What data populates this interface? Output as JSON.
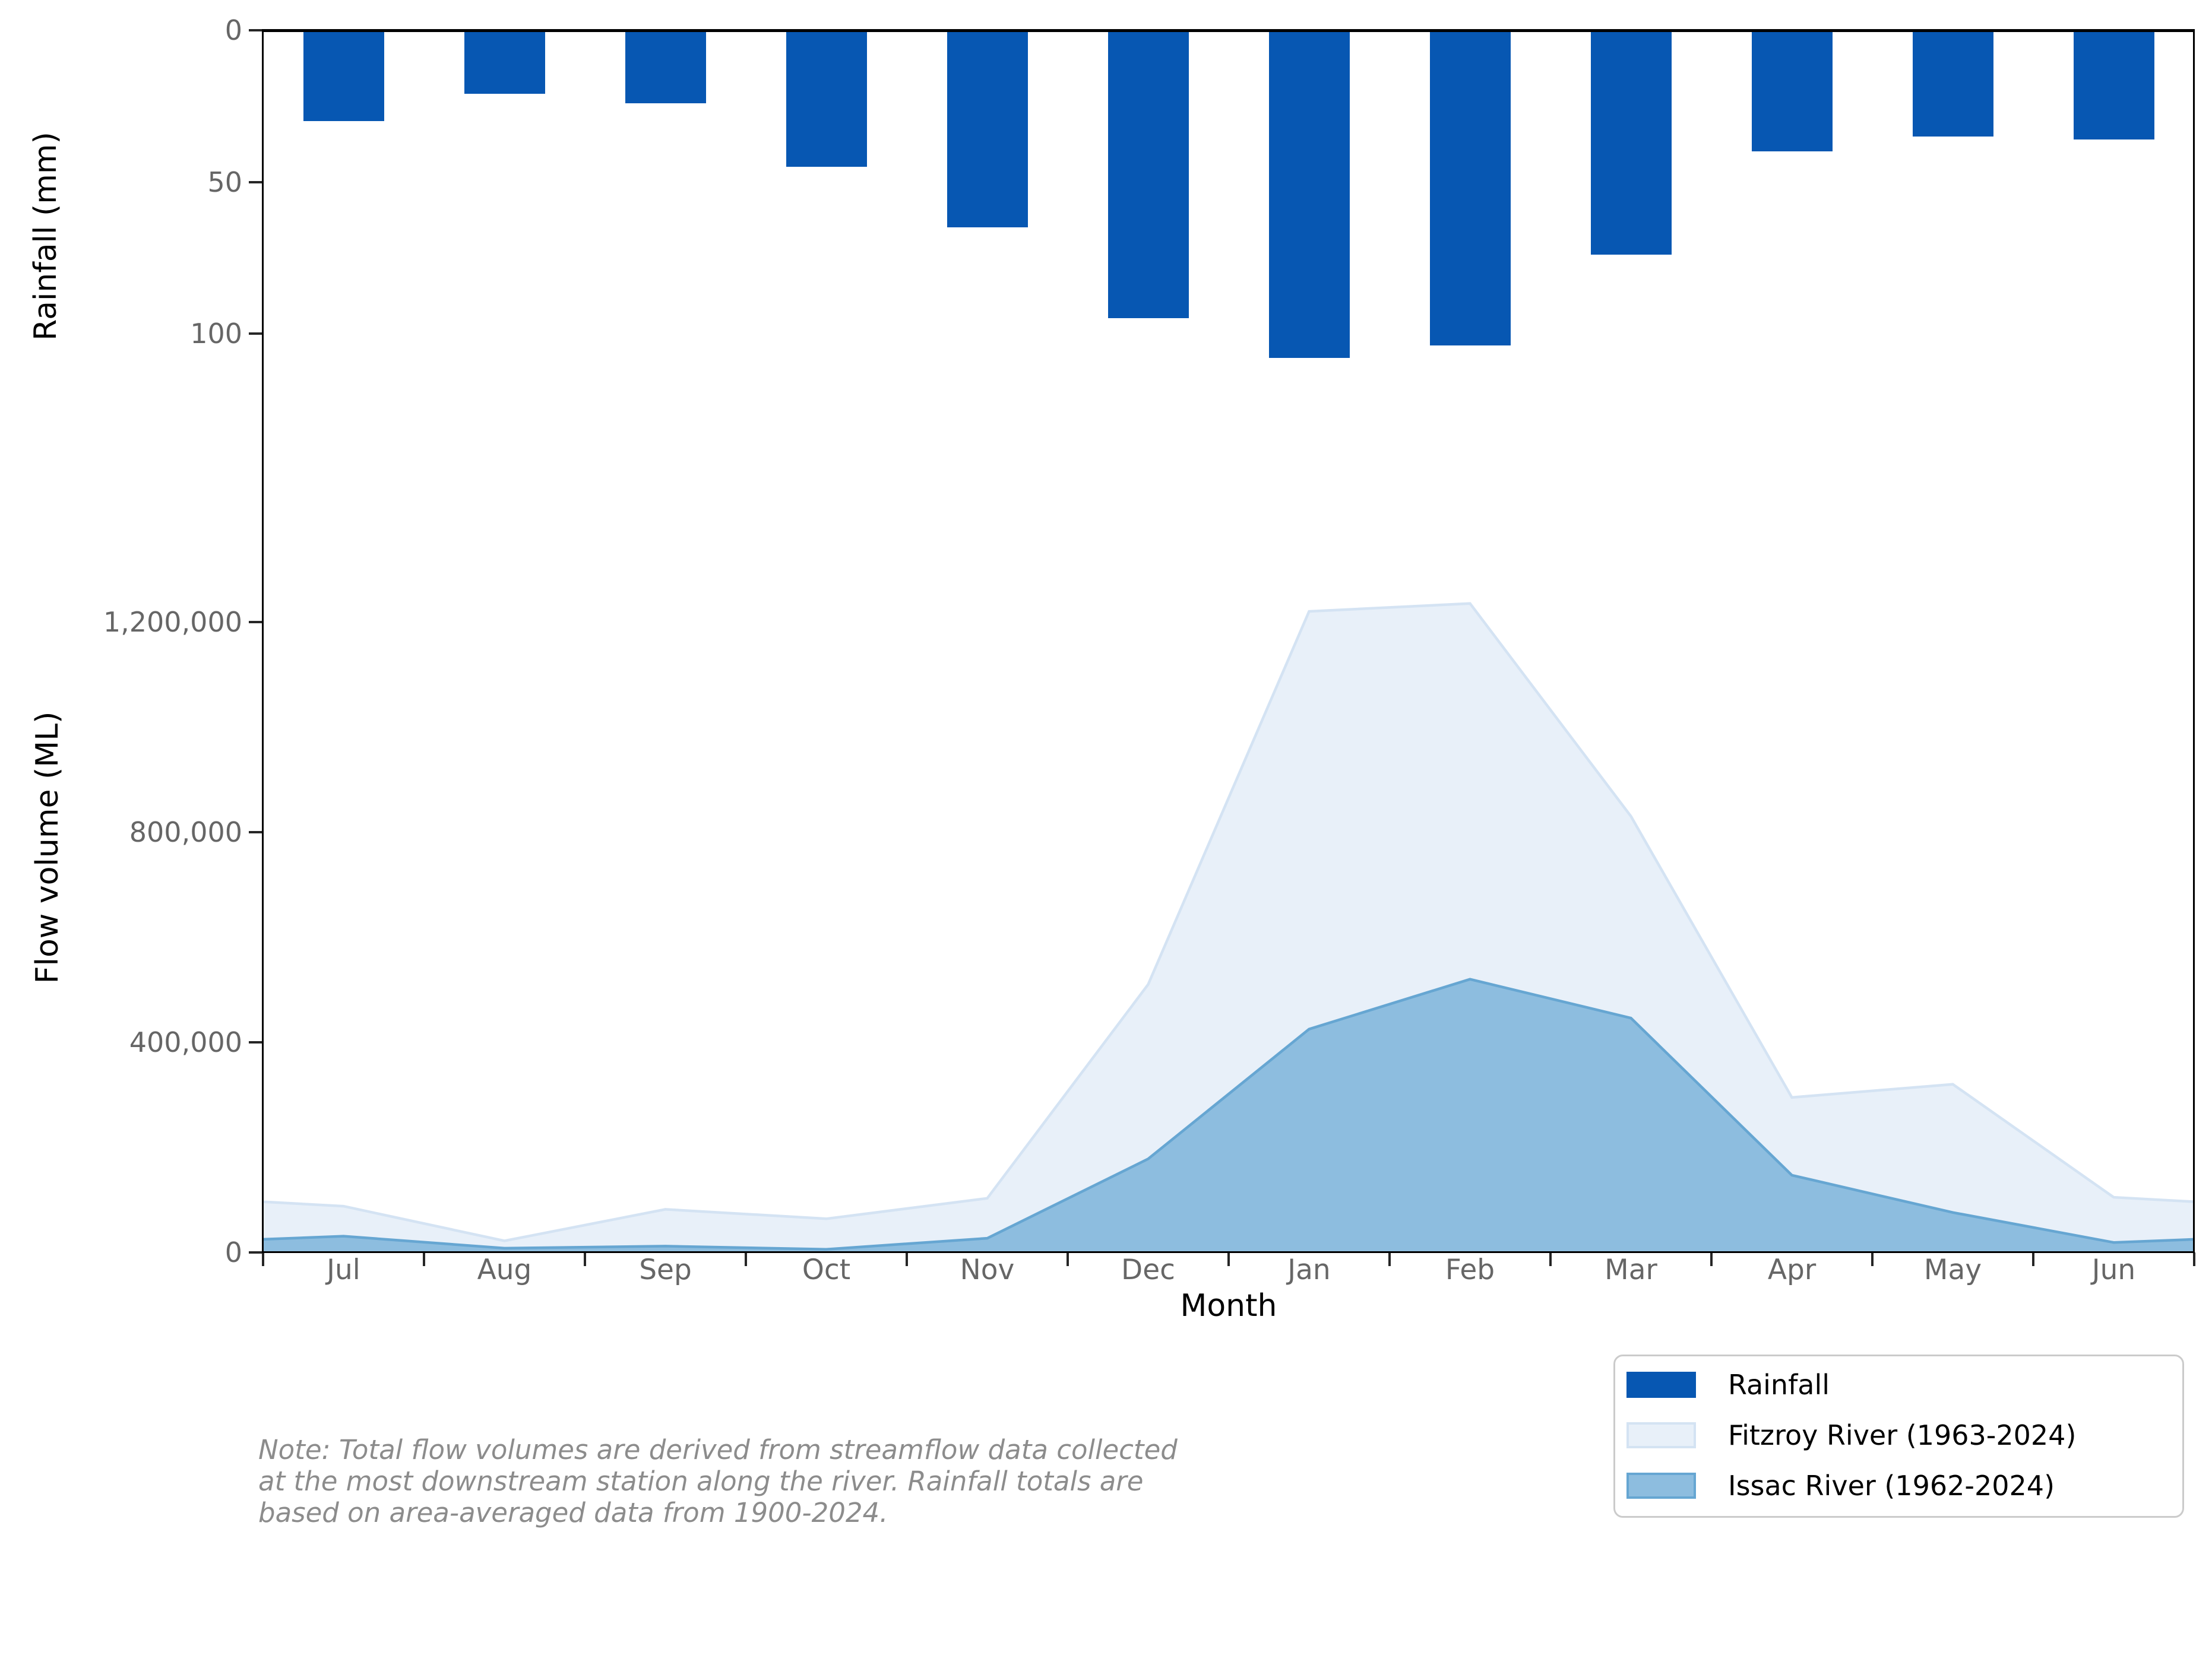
{
  "note": {
    "lines": [
      "Note: Total flow volumes are derived from streamflow data collected",
      "at the most downstream station along the river. Rainfall totals are",
      "based on area-averaged data from 1900-2024."
    ]
  },
  "legend": {
    "items": [
      {
        "label": "Rainfall",
        "fill": "#0757b2",
        "edge": "#0757b2"
      },
      {
        "label": "Fitzroy River (1963-2024)",
        "fill": "#e8f0f9",
        "edge": "#d4e3f3"
      },
      {
        "label": "Issac River (1962-2024)",
        "fill": "#8dbddf",
        "edge": "#66a6d2"
      }
    ]
  },
  "chart_data": [
    {
      "type": "bar",
      "panel": "top",
      "title": "",
      "ylabel": "Rainfall (mm)",
      "series_name": "Rainfall",
      "categories": [
        "Jul",
        "Aug",
        "Sep",
        "Oct",
        "Nov",
        "Dec",
        "Jan",
        "Feb",
        "Mar",
        "Apr",
        "May",
        "Jun"
      ],
      "values": [
        30,
        21,
        24,
        45,
        65,
        95,
        108,
        104,
        74,
        40,
        35,
        36
      ],
      "unit": "mm",
      "ylim": [
        135,
        0
      ],
      "y_inverted": true,
      "yticks": [
        0,
        50,
        100
      ],
      "ytick_labels": [
        "0",
        "50",
        "100"
      ],
      "bar_color": "#0757b2",
      "grid": false,
      "legend_position": "shared lower right"
    },
    {
      "type": "area",
      "panel": "bottom",
      "title": "",
      "ylabel": "Flow volume (ML)",
      "xlabel": "Month",
      "categories": [
        "Jul",
        "Aug",
        "Sep",
        "Oct",
        "Nov",
        "Dec",
        "Jan",
        "Feb",
        "Mar",
        "Apr",
        "May",
        "Jun"
      ],
      "series": [
        {
          "name": "Fitzroy River (1963-2024)",
          "values": [
            88000,
            22000,
            82000,
            64000,
            103000,
            510000,
            1220000,
            1235000,
            830000,
            295000,
            320000,
            105000
          ],
          "fill": "#e8f0f9",
          "edge": "#d4e3f3"
        },
        {
          "name": "Issac River (1962-2024)",
          "values": [
            31000,
            8000,
            12000,
            6000,
            27000,
            178000,
            425000,
            520000,
            446000,
            147000,
            76000,
            19000
          ],
          "fill": "#8dbddf",
          "edge": "#66a6d2"
        }
      ],
      "unit": "ML",
      "ylim": [
        0,
        1551000
      ],
      "yticks": [
        0,
        400000,
        800000,
        1200000
      ],
      "ytick_labels": [
        "0",
        "400,000",
        "800,000",
        "1,200,000"
      ],
      "grid": false,
      "legend_position": "lower right below axes"
    }
  ]
}
